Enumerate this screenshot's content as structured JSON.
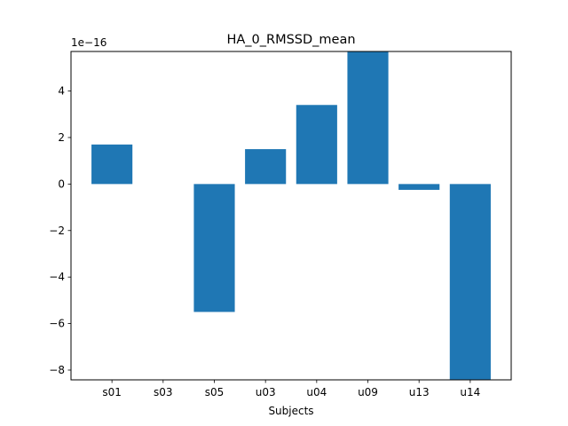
{
  "chart_data": {
    "type": "bar",
    "title": "HA_0_RMSSD_mean",
    "xlabel": "Subjects",
    "ylabel": "",
    "y_offset_label": "1e−16",
    "y_scale_exponent": -16,
    "categories": [
      "s01",
      "s03",
      "s05",
      "u03",
      "u04",
      "u09",
      "u13",
      "u14"
    ],
    "values": [
      1.7e-16,
      0.0,
      -5.5e-16,
      1.5e-16,
      3.4e-16,
      5.7e-16,
      -2.5e-17,
      -8.4e-16
    ],
    "display_values": [
      1.7,
      0.0,
      -5.5,
      1.5,
      3.4,
      5.7,
      -0.25,
      -8.4
    ],
    "y_ticks": [
      4,
      2,
      0,
      -2,
      -4,
      -6,
      -8
    ],
    "y_tick_labels": [
      "4",
      "2",
      "0",
      "−2",
      "−4",
      "−6",
      "−8"
    ],
    "ylim_display": [
      -8.42,
      5.7
    ],
    "bar_color": "#1f77b4",
    "grid": false,
    "legend": "none"
  }
}
